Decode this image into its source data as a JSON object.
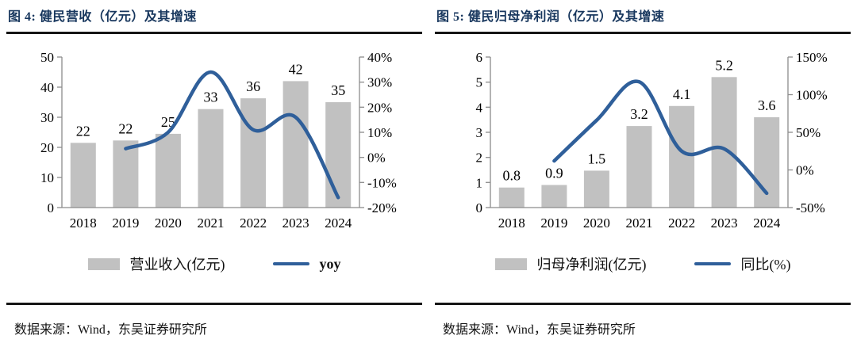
{
  "page": {
    "background": "#ffffff"
  },
  "figures": [
    {
      "title": "图 4:  健民营收（亿元）及其增速",
      "source": "数据来源：Wind，东吴证券研究所",
      "legend": {
        "bar_label": "营业收入(亿元)",
        "line_label": "yoy"
      }
    },
    {
      "title": "图 5:  健民归母净利润（亿元）及其增速",
      "source": "数据来源：Wind，东吴证券研究所",
      "legend": {
        "bar_label": "归母净利润(亿元)",
        "line_label": "同比(%)"
      }
    }
  ],
  "chart_data": [
    {
      "type": "bar",
      "subtype": "bar-with-smooth-line-combo",
      "title": "健民营收（亿元）及其增速",
      "categories": [
        "2018",
        "2019",
        "2020",
        "2021",
        "2022",
        "2023",
        "2024"
      ],
      "series": [
        {
          "name": "营业收入(亿元)",
          "kind": "bar",
          "axis": "left",
          "values": [
            21.5,
            22.3,
            24.5,
            32.7,
            36.3,
            42,
            35
          ],
          "labels": [
            "22",
            "22",
            "25",
            "33",
            "36",
            "42",
            "35"
          ]
        },
        {
          "name": "yoy",
          "kind": "line",
          "axis": "right",
          "values": [
            null,
            3.5,
            10,
            34,
            11,
            16,
            -16
          ]
        }
      ],
      "left_axis": {
        "min": 0,
        "max": 50,
        "ticks": [
          50,
          40,
          30,
          20,
          10,
          0
        ],
        "suffix": ""
      },
      "right_axis": {
        "min": -20,
        "max": 40,
        "ticks": [
          40,
          30,
          20,
          10,
          0,
          -10,
          -20
        ],
        "suffix": "%"
      },
      "colors": {
        "bar": "#c1c1c1",
        "line": "#2f5f9a",
        "axis": "#8c8c8c",
        "text": "#000000"
      },
      "legend_position": "bottom",
      "grid": false
    },
    {
      "type": "bar",
      "subtype": "bar-with-smooth-line-combo",
      "title": "健民归母净利润（亿元）及其增速",
      "categories": [
        "2018",
        "2019",
        "2020",
        "2021",
        "2022",
        "2023",
        "2024"
      ],
      "series": [
        {
          "name": "归母净利润(亿元)",
          "kind": "bar",
          "axis": "left",
          "values": [
            0.8,
            0.9,
            1.47,
            3.25,
            4.05,
            5.2,
            3.6
          ],
          "labels": [
            "0.8",
            "0.9",
            "1.5",
            "3.2",
            "4.1",
            "5.2",
            "3.6"
          ]
        },
        {
          "name": "同比(%)",
          "kind": "line",
          "axis": "right",
          "values": [
            null,
            12,
            66,
            117,
            25,
            28,
            -31
          ]
        }
      ],
      "left_axis": {
        "min": 0,
        "max": 6,
        "ticks": [
          6,
          5,
          4,
          3,
          2,
          1,
          0
        ],
        "suffix": ""
      },
      "right_axis": {
        "min": -50,
        "max": 150,
        "ticks": [
          150,
          100,
          50,
          0,
          -50
        ],
        "suffix": "%"
      },
      "colors": {
        "bar": "#c1c1c1",
        "line": "#2f5f9a",
        "axis": "#8c8c8c",
        "text": "#000000"
      },
      "legend_position": "bottom",
      "grid": false
    }
  ]
}
